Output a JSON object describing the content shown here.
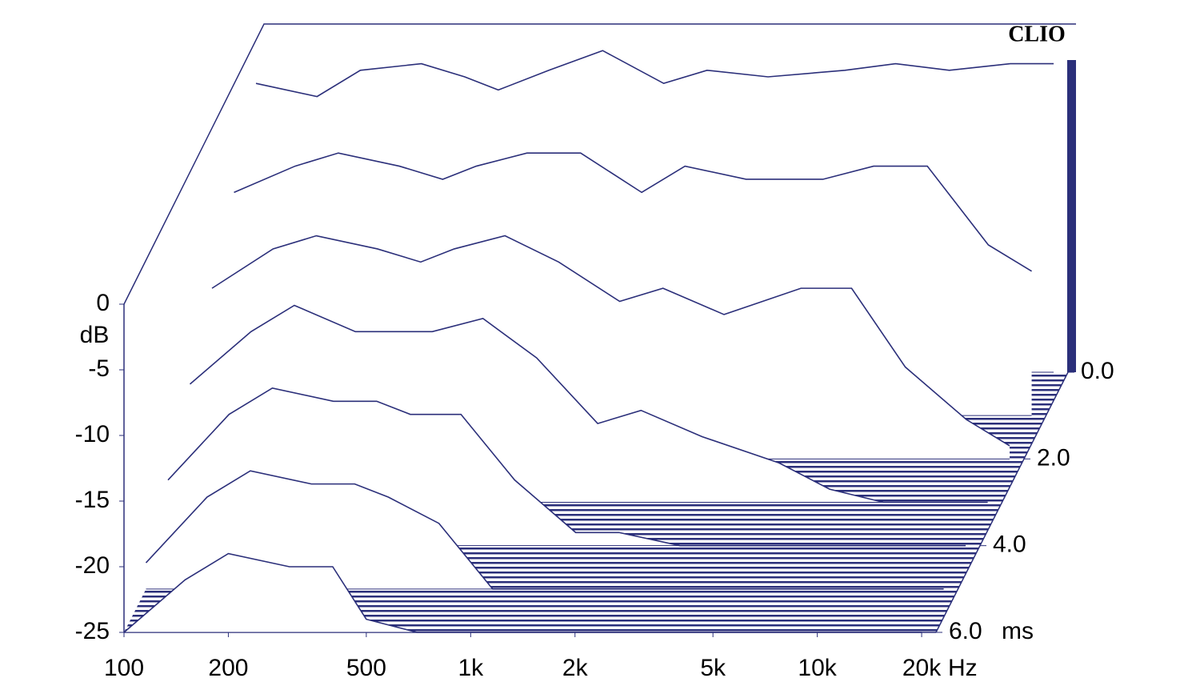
{
  "chart_data": {
    "type": "waterfall",
    "brand": "CLIO",
    "y_label": "dB",
    "x_unit": "Hz",
    "z_unit": "ms",
    "color": "#2b2f7a",
    "x": [
      100,
      150,
      200,
      300,
      400,
      500,
      700,
      1000,
      1500,
      2000,
      3000,
      5000,
      7000,
      10000,
      15000,
      20000
    ],
    "series": [
      {
        "time": 0,
        "values": [
          -3,
          -4,
          -2,
          -1.5,
          -2.5,
          -3.5,
          -2,
          -0.5,
          -3,
          -2,
          -2.5,
          -2,
          -1.5,
          -2,
          -1.5,
          -1.5
        ]
      },
      {
        "time": 1,
        "values": [
          -8,
          -6,
          -5,
          -6,
          -7,
          -6,
          -5,
          -5,
          -8,
          -6,
          -7,
          -7,
          -6,
          -6,
          -12,
          -14
        ]
      },
      {
        "time": 2,
        "values": [
          -12,
          -9,
          -8,
          -9,
          -10,
          -9,
          -8,
          -10,
          -13,
          -12,
          -14,
          -12,
          -12,
          -18,
          -22,
          -24
        ]
      },
      {
        "time": 3,
        "values": [
          -16,
          -12,
          -10,
          -12,
          -12,
          -12,
          -11,
          -14,
          -19,
          -18,
          -20,
          -22,
          -24,
          -25,
          -25,
          -25
        ]
      },
      {
        "time": 4,
        "values": [
          -20,
          -15,
          -13,
          -14,
          -14,
          -15,
          -15,
          -20,
          -24,
          -24,
          -25,
          -25,
          -25,
          -25,
          -25,
          -25
        ]
      },
      {
        "time": 5,
        "values": [
          -23,
          -18,
          -16,
          -17,
          -17,
          -18,
          -20,
          -25,
          -25,
          -25,
          -25,
          -25,
          -25,
          -25,
          -25,
          -25
        ]
      },
      {
        "time": 6,
        "values": [
          -25,
          -21,
          -19,
          -20,
          -20,
          -24,
          -25,
          -25,
          -25,
          -25,
          -25,
          -25,
          -25,
          -25,
          -25,
          -25
        ]
      }
    ],
    "xlim": [
      100,
      22000
    ],
    "xticks": [
      100,
      200,
      500,
      {
        "value": 1000,
        "label": "1k"
      },
      {
        "value": 2000,
        "label": "2k"
      },
      {
        "value": 5000,
        "label": "5k"
      },
      {
        "value": 10000,
        "label": "10k"
      },
      {
        "value": 20000,
        "label": "20k"
      }
    ],
    "ylim": [
      -25,
      0
    ],
    "yticks": [
      0,
      -5,
      -10,
      -15,
      -20,
      -25
    ],
    "zlim": [
      0,
      6
    ],
    "zticks": [
      {
        "value": 0,
        "label": "0.0"
      },
      {
        "value": 2,
        "label": "2.0"
      },
      {
        "value": 4,
        "label": "4.0"
      },
      {
        "value": 6,
        "label": "6.0"
      }
    ]
  }
}
